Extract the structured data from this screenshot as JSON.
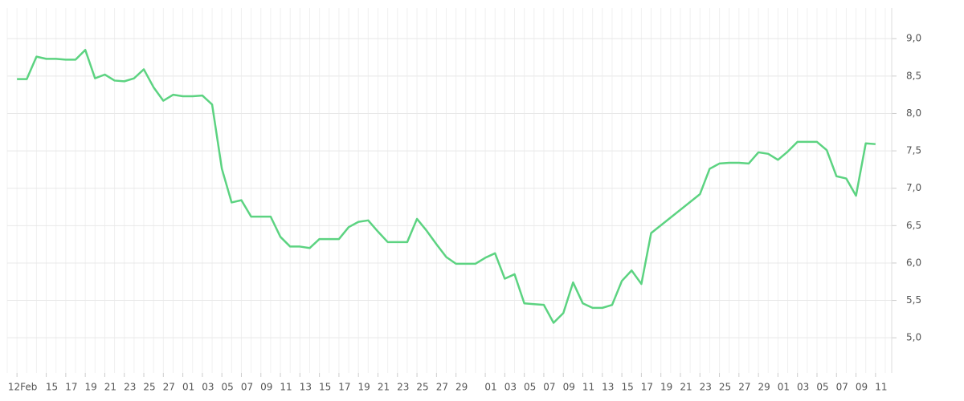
{
  "chart_data": {
    "type": "line",
    "x": [
      "02-12",
      "02-13",
      "02-14",
      "02-15",
      "02-16",
      "02-17",
      "02-18",
      "02-19",
      "02-20",
      "02-21",
      "02-22",
      "02-23",
      "02-24",
      "02-25",
      "02-26",
      "02-27",
      "02-28",
      "03-01",
      "03-02",
      "03-03",
      "03-04",
      "03-05",
      "03-06",
      "03-07",
      "03-08",
      "03-09",
      "03-10",
      "03-11",
      "03-12",
      "03-13",
      "03-14",
      "03-15",
      "03-16",
      "03-17",
      "03-18",
      "03-19",
      "03-20",
      "03-21",
      "03-22",
      "03-23",
      "03-24",
      "03-25",
      "03-26",
      "03-27",
      "03-28",
      "03-29",
      "03-30",
      "03-31",
      "04-01",
      "04-02",
      "04-03",
      "04-04",
      "04-05",
      "04-06",
      "04-07",
      "04-08",
      "04-09",
      "04-10",
      "04-11",
      "04-12",
      "04-13",
      "04-14",
      "04-15",
      "04-16",
      "04-17",
      "04-18",
      "04-23",
      "04-24",
      "04-25",
      "04-26",
      "04-27",
      "04-28",
      "04-29",
      "04-30",
      "05-01",
      "05-02",
      "05-03",
      "05-04",
      "05-05",
      "05-06",
      "05-07",
      "05-08",
      "05-09",
      "05-10",
      "05-11"
    ],
    "values": [
      8.46,
      8.46,
      8.76,
      8.73,
      8.73,
      8.72,
      8.72,
      8.85,
      8.47,
      8.52,
      8.44,
      8.43,
      8.47,
      8.59,
      8.35,
      8.17,
      8.25,
      8.23,
      8.23,
      8.24,
      8.12,
      7.26,
      6.81,
      6.84,
      6.62,
      6.62,
      6.62,
      6.35,
      6.22,
      6.22,
      6.2,
      6.32,
      6.32,
      6.32,
      6.48,
      6.55,
      6.57,
      6.42,
      6.28,
      6.28,
      6.28,
      6.59,
      6.43,
      6.25,
      6.08,
      5.99,
      5.99,
      5.99,
      6.07,
      6.13,
      5.79,
      5.85,
      5.46,
      5.45,
      5.44,
      5.2,
      5.33,
      5.74,
      5.46,
      5.4,
      5.4,
      5.44,
      5.76,
      5.9,
      5.72,
      6.4,
      6.92,
      7.26,
      7.33,
      7.34,
      7.34,
      7.33,
      7.48,
      7.46,
      7.38,
      7.49,
      7.62,
      7.62,
      7.62,
      7.51,
      7.16,
      7.13,
      6.9,
      7.6,
      7.59
    ],
    "color": "#5cd381",
    "xlim": [
      "02-11",
      "05-12"
    ],
    "xticks": [
      {
        "value": "02-12",
        "label": "12Feb"
      },
      {
        "value": "02-15",
        "label": "15"
      },
      {
        "value": "02-17",
        "label": "17"
      },
      {
        "value": "02-19",
        "label": "19"
      },
      {
        "value": "02-21",
        "label": "21"
      },
      {
        "value": "02-23",
        "label": "23"
      },
      {
        "value": "02-25",
        "label": "25"
      },
      {
        "value": "02-27",
        "label": "27"
      },
      {
        "value": "03-01",
        "label": "01"
      },
      {
        "value": "03-03",
        "label": "03"
      },
      {
        "value": "03-05",
        "label": "05"
      },
      {
        "value": "03-07",
        "label": "07"
      },
      {
        "value": "03-09",
        "label": "09"
      },
      {
        "value": "03-11",
        "label": "11"
      },
      {
        "value": "03-13",
        "label": "13"
      },
      {
        "value": "03-15",
        "label": "15"
      },
      {
        "value": "03-17",
        "label": "17"
      },
      {
        "value": "03-19",
        "label": "19"
      },
      {
        "value": "03-21",
        "label": "21"
      },
      {
        "value": "03-23",
        "label": "23"
      },
      {
        "value": "03-25",
        "label": "25"
      },
      {
        "value": "03-27",
        "label": "27"
      },
      {
        "value": "03-29",
        "label": "29"
      },
      {
        "value": "04-01",
        "label": "01"
      },
      {
        "value": "04-03",
        "label": "03"
      },
      {
        "value": "04-05",
        "label": "05"
      },
      {
        "value": "04-07",
        "label": "07"
      },
      {
        "value": "04-09",
        "label": "09"
      },
      {
        "value": "04-11",
        "label": "11"
      },
      {
        "value": "04-13",
        "label": "13"
      },
      {
        "value": "04-15",
        "label": "15"
      },
      {
        "value": "04-17",
        "label": "17"
      },
      {
        "value": "04-19",
        "label": "19"
      },
      {
        "value": "04-21",
        "label": "21"
      },
      {
        "value": "04-23",
        "label": "23"
      },
      {
        "value": "04-25",
        "label": "25"
      },
      {
        "value": "04-27",
        "label": "27"
      },
      {
        "value": "04-29",
        "label": "29"
      },
      {
        "value": "05-01",
        "label": "01"
      },
      {
        "value": "05-03",
        "label": "03"
      },
      {
        "value": "05-05",
        "label": "05"
      },
      {
        "value": "05-07",
        "label": "07"
      },
      {
        "value": "05-09",
        "label": "09"
      },
      {
        "value": "05-11",
        "label": "11"
      }
    ],
    "ylim": [
      4.53,
      9.41
    ],
    "yticks": [
      {
        "value": 5,
        "label": "5,0"
      },
      {
        "value": 5.5,
        "label": "5,5"
      },
      {
        "value": 6,
        "label": "6,0"
      },
      {
        "value": 6.5,
        "label": "6,5"
      },
      {
        "value": 7,
        "label": "7,0"
      },
      {
        "value": 7.5,
        "label": "7,5"
      },
      {
        "value": 8,
        "label": "8,0"
      },
      {
        "value": 8.5,
        "label": "8,5"
      },
      {
        "value": 9,
        "label": "9,0"
      }
    ],
    "grid": true
  }
}
